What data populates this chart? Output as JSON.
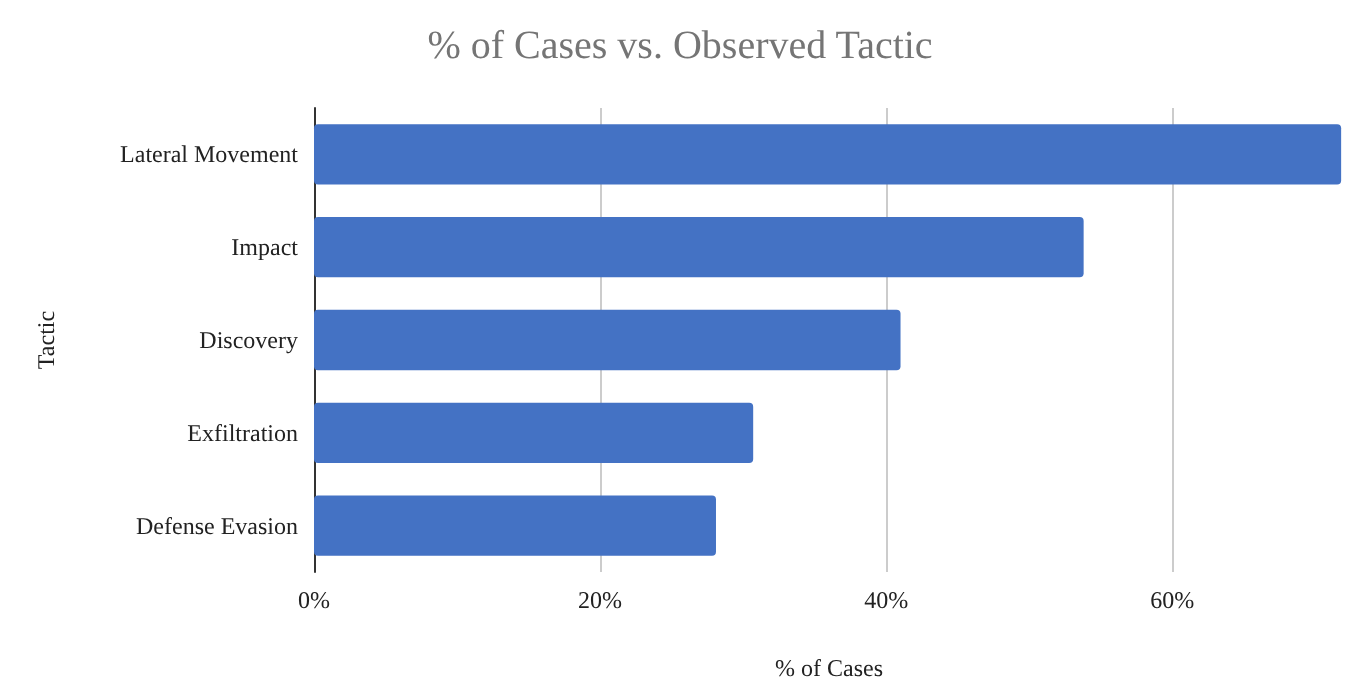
{
  "chart_data": {
    "type": "bar",
    "orientation": "horizontal",
    "title": "% of Cases vs. Observed Tactic",
    "xlabel": "% of Cases",
    "ylabel": "Tactic",
    "categories": [
      "Lateral Movement",
      "Impact",
      "Discovery",
      "Exfiltration",
      "Defense Evasion"
    ],
    "values": [
      71.8,
      53.8,
      41.0,
      30.7,
      28.1
    ],
    "color": "#4472c4",
    "xlim": [
      0,
      72
    ],
    "xticks": [
      {
        "value": 0,
        "label": "0%"
      },
      {
        "value": 20,
        "label": "20%"
      },
      {
        "value": 40,
        "label": "40%"
      },
      {
        "value": 60,
        "label": "60%"
      }
    ],
    "grid": "x"
  }
}
